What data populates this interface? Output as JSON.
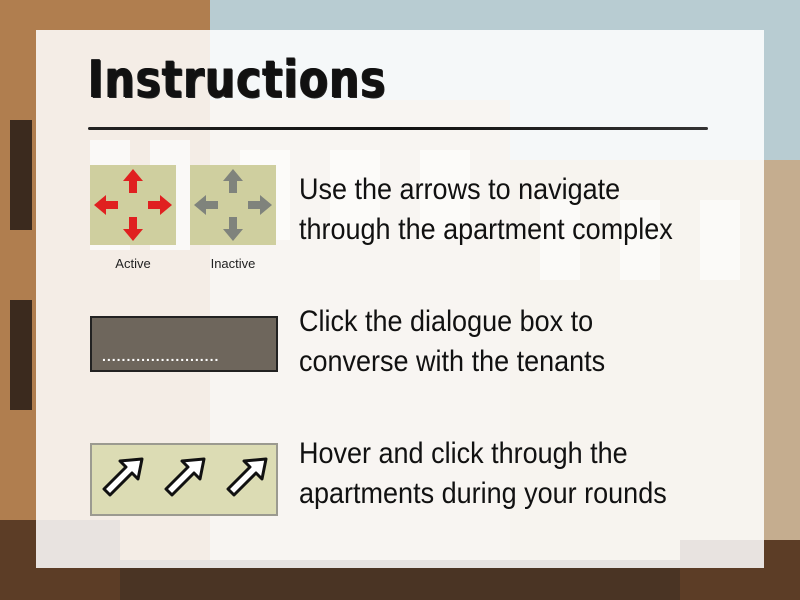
{
  "title": "Instructions",
  "labels": {
    "active": "Active",
    "inactive": "Inactive"
  },
  "instructions": [
    {
      "line1": "Use the arrows to navigate",
      "line2": "through the apartment complex"
    },
    {
      "line1": "Click the dialogue box to",
      "line2": "converse with the tenants"
    },
    {
      "line1": "Hover and click through the",
      "line2": "apartments during your rounds"
    }
  ],
  "dialogue_dots": "........................",
  "icons": {
    "active_arrows": "arrows-icon-active",
    "inactive_arrows": "arrows-icon-inactive",
    "pointer": "cursor-arrow-icon"
  },
  "colors": {
    "active_arrow": "#e02020",
    "inactive_arrow": "#7f837c",
    "arrow_box": "#cfcf9f",
    "dialogue_box": "#6e665c",
    "panel": "#ffffff"
  }
}
